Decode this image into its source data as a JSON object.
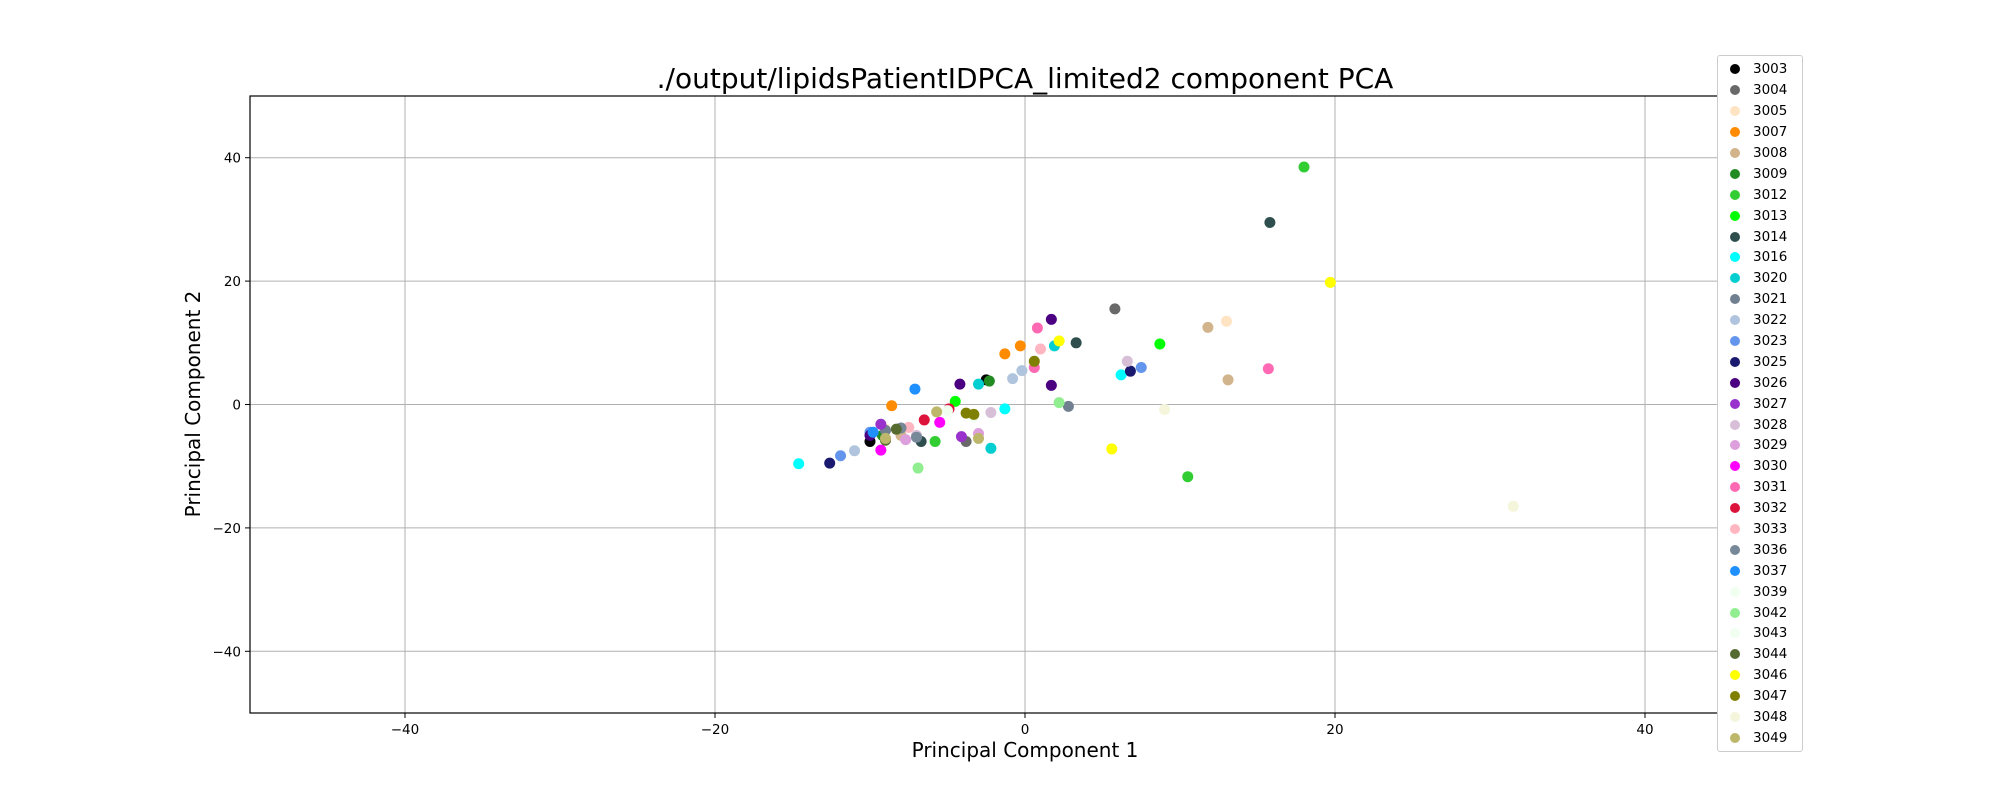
{
  "chart_data": {
    "type": "scatter",
    "title": "./output/lipidsPatientIDPCA_limited2 component PCA",
    "xlabel": "Principal Component 1",
    "ylabel": "Principal Component 2",
    "xlim": [
      -50,
      50
    ],
    "ylim": [
      -50,
      50
    ],
    "xticks": [
      -40,
      -20,
      0,
      20,
      40
    ],
    "yticks": [
      -40,
      -20,
      0,
      20,
      40
    ],
    "grid": true,
    "legend_position": "upper-right",
    "series": [
      {
        "name": "3003",
        "color": "#000000",
        "points": [
          [
            -10.0,
            -6.0
          ],
          [
            -2.5,
            4.0
          ]
        ]
      },
      {
        "name": "3004",
        "color": "#696969",
        "points": [
          [
            5.8,
            15.5
          ],
          [
            -3.8,
            -6.0
          ]
        ]
      },
      {
        "name": "3005",
        "color": "#ffe4c4",
        "points": [
          [
            13.0,
            13.5
          ],
          [
            -9.0,
            -4.0
          ]
        ]
      },
      {
        "name": "3007",
        "color": "#ff8c00",
        "points": [
          [
            -0.3,
            9.5
          ],
          [
            -1.3,
            8.2
          ],
          [
            -8.6,
            -0.2
          ]
        ]
      },
      {
        "name": "3008",
        "color": "#d2b48c",
        "points": [
          [
            11.8,
            12.5
          ],
          [
            13.1,
            4.0
          ],
          [
            -8.0,
            -5.0
          ]
        ]
      },
      {
        "name": "3009",
        "color": "#228b22",
        "points": [
          [
            -2.3,
            3.8
          ],
          [
            -9.2,
            -5.0
          ]
        ]
      },
      {
        "name": "3012",
        "color": "#32cd32",
        "points": [
          [
            18.0,
            38.5
          ],
          [
            10.5,
            -11.7
          ],
          [
            -5.8,
            -6.0
          ]
        ]
      },
      {
        "name": "3013",
        "color": "#00ff00",
        "points": [
          [
            8.7,
            9.8
          ],
          [
            -4.5,
            0.5
          ]
        ]
      },
      {
        "name": "3014",
        "color": "#2f4f4f",
        "points": [
          [
            15.8,
            29.5
          ],
          [
            3.3,
            10.0
          ],
          [
            -6.7,
            -6.0
          ]
        ]
      },
      {
        "name": "3016",
        "color": "#00ffff",
        "points": [
          [
            -14.6,
            -9.6
          ],
          [
            6.2,
            4.8
          ],
          [
            -1.3,
            -0.7
          ]
        ]
      },
      {
        "name": "3020",
        "color": "#00ced1",
        "points": [
          [
            1.9,
            9.5
          ],
          [
            -3.0,
            3.3
          ],
          [
            -2.2,
            -7.1
          ]
        ]
      },
      {
        "name": "3021",
        "color": "#708090",
        "points": [
          [
            2.8,
            -0.3
          ],
          [
            -9.0,
            -4.2
          ]
        ]
      },
      {
        "name": "3022",
        "color": "#b0c4de",
        "points": [
          [
            -0.2,
            5.5
          ],
          [
            -0.8,
            4.2
          ],
          [
            -11.0,
            -7.5
          ]
        ]
      },
      {
        "name": "3023",
        "color": "#6495ed",
        "points": [
          [
            7.5,
            6.0
          ],
          [
            -11.9,
            -8.3
          ],
          [
            -10.0,
            -4.5
          ]
        ]
      },
      {
        "name": "3025",
        "color": "#191970",
        "points": [
          [
            6.8,
            5.4
          ],
          [
            -12.6,
            -9.5
          ]
        ]
      },
      {
        "name": "3026",
        "color": "#4b0082",
        "points": [
          [
            1.7,
            13.8
          ],
          [
            1.7,
            3.1
          ],
          [
            -4.2,
            3.3
          ],
          [
            -10.0,
            -5.0
          ]
        ]
      },
      {
        "name": "3027",
        "color": "#9932cc",
        "points": [
          [
            -4.1,
            -5.2
          ],
          [
            -9.3,
            -3.2
          ]
        ]
      },
      {
        "name": "3028",
        "color": "#d8bfd8",
        "points": [
          [
            6.6,
            7.0
          ],
          [
            -2.2,
            -1.3
          ],
          [
            -7.0,
            -5.0
          ]
        ]
      },
      {
        "name": "3029",
        "color": "#dda0dd",
        "points": [
          [
            -7.7,
            -5.7
          ],
          [
            -3.0,
            -4.7
          ]
        ]
      },
      {
        "name": "3030",
        "color": "#ff00ff",
        "points": [
          [
            -9.3,
            -7.4
          ],
          [
            -5.5,
            -2.9
          ]
        ]
      },
      {
        "name": "3031",
        "color": "#ff69b4",
        "points": [
          [
            15.7,
            5.8
          ],
          [
            0.8,
            12.4
          ],
          [
            0.6,
            6.0
          ]
        ]
      },
      {
        "name": "3032",
        "color": "#dc143c",
        "points": [
          [
            -6.5,
            -2.5
          ],
          [
            -4.9,
            -0.7
          ]
        ]
      },
      {
        "name": "3033",
        "color": "#ffb6c1",
        "points": [
          [
            1.0,
            9.0
          ],
          [
            -7.5,
            -3.7
          ]
        ]
      },
      {
        "name": "3036",
        "color": "#778899",
        "points": [
          [
            -7.0,
            -5.3
          ],
          [
            -8.0,
            -3.8
          ]
        ]
      },
      {
        "name": "3037",
        "color": "#1e90ff",
        "points": [
          [
            -7.1,
            2.5
          ],
          [
            -9.8,
            -4.5
          ]
        ]
      },
      {
        "name": "3039",
        "color": "#f0fff0",
        "points": [
          [
            -5.0,
            -1.0
          ]
        ]
      },
      {
        "name": "3042",
        "color": "#90ee90",
        "points": [
          [
            -6.9,
            -10.3
          ],
          [
            2.2,
            0.3
          ]
        ]
      },
      {
        "name": "3043",
        "color": "#f0fff0",
        "points": [
          [
            -3.3,
            -2.0
          ]
        ]
      },
      {
        "name": "3044",
        "color": "#556b2f",
        "points": [
          [
            -8.3,
            -4.0
          ],
          [
            -9.0,
            -5.8
          ]
        ]
      },
      {
        "name": "3046",
        "color": "#ffff00",
        "points": [
          [
            19.7,
            19.8
          ],
          [
            5.6,
            -7.2
          ],
          [
            2.2,
            10.3
          ]
        ]
      },
      {
        "name": "3047",
        "color": "#808000",
        "points": [
          [
            0.6,
            7.0
          ],
          [
            -3.3,
            -1.6
          ],
          [
            -3.8,
            -1.4
          ]
        ]
      },
      {
        "name": "3048",
        "color": "#f5f5dc",
        "points": [
          [
            31.5,
            -16.5
          ],
          [
            9.0,
            -0.8
          ]
        ]
      },
      {
        "name": "3049",
        "color": "#bdb76b",
        "points": [
          [
            -5.7,
            -1.2
          ],
          [
            -3.0,
            -5.5
          ],
          [
            -9.0,
            -5.5
          ]
        ]
      }
    ]
  }
}
